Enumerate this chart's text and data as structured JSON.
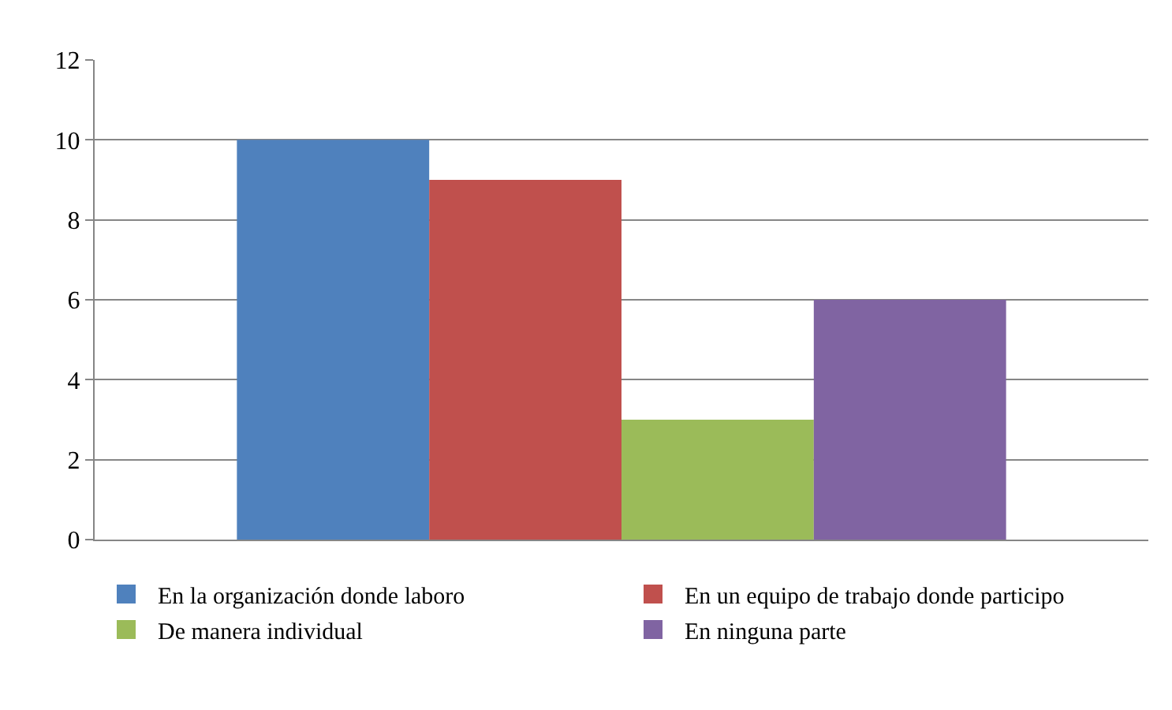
{
  "chart_data": {
    "type": "bar",
    "categories": [
      null
    ],
    "series": [
      {
        "name": "En la organización donde laboro",
        "color": "#4f81bd",
        "values": [
          10
        ]
      },
      {
        "name": "En un equipo de trabajo donde participo",
        "color": "#c0504d",
        "values": [
          9
        ]
      },
      {
        "name": "De manera individual",
        "color": "#9bbb59",
        "values": [
          3
        ]
      },
      {
        "name": "En ninguna parte",
        "color": "#8064a2",
        "values": [
          6
        ]
      }
    ],
    "ylim": [
      0,
      12
    ],
    "yticks": [
      0,
      2,
      4,
      6,
      8,
      10,
      12
    ],
    "grid": "y",
    "legend": "bottom"
  }
}
